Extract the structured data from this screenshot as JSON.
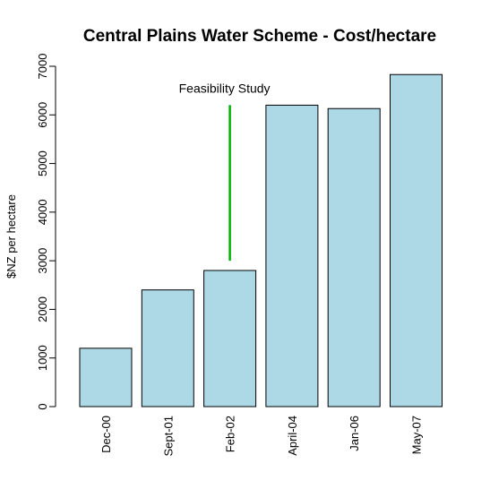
{
  "chart_data": {
    "type": "bar",
    "title": "Central Plains Water Scheme - Cost/hectare",
    "xlabel": "",
    "ylabel": "$NZ per hectare",
    "categories": [
      "Dec-00",
      "Sept-01",
      "Feb-02",
      "April-04",
      "Jan-06",
      "May-07"
    ],
    "values": [
      1200,
      2400,
      2800,
      6200,
      6130,
      6830
    ],
    "ylim": [
      0,
      7000
    ],
    "yticks": [
      0,
      1000,
      2000,
      3000,
      4000,
      5000,
      6000,
      7000
    ],
    "ytick_labels": [
      "0",
      "1000",
      "2000",
      "3000",
      "4000",
      "5000",
      "6000",
      "7000"
    ],
    "grid": false,
    "legend": "none",
    "bar_color": "#add8e6",
    "bar_edge_color": "#000000",
    "annotation": {
      "text": "Feasibility Study",
      "category": "Feb-02",
      "line_from": 3000,
      "line_to": 6200,
      "label_value": 6550,
      "color": "#00b000"
    }
  }
}
